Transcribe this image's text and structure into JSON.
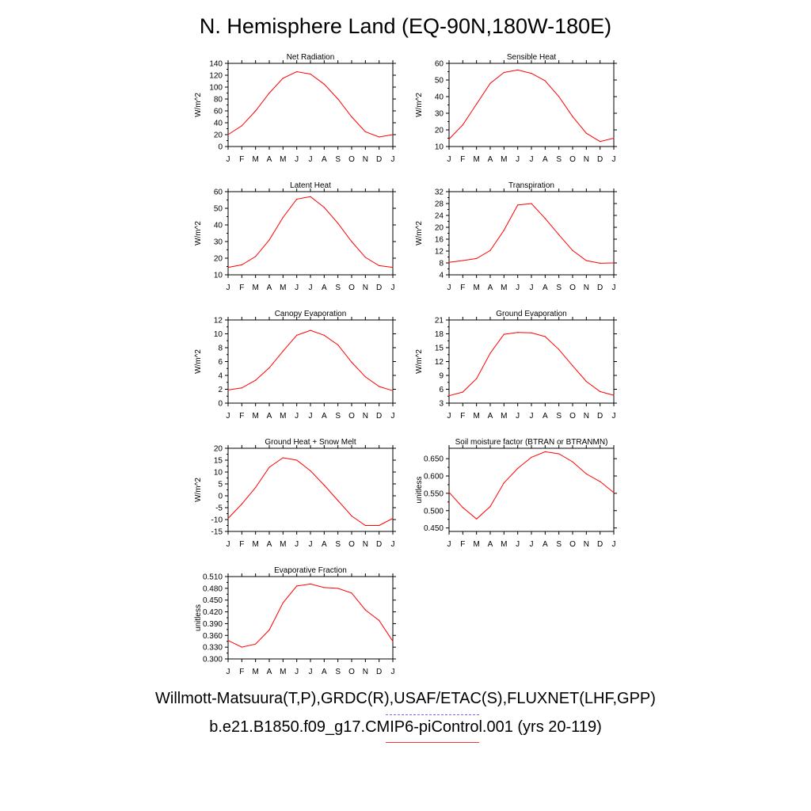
{
  "title": "N. Hemisphere Land (EQ-90N,180W-180E)",
  "legend": {
    "observations": "Willmott-Matsuura(T,P),GRDC(R),USAF/ETAC(S),FLUXNET(LHF,GPP)",
    "model": "b.e21.B1850.f09_g17.CMIP6-piControl.001 (yrs 20-119)",
    "observations_color": "#6a6aff",
    "model_color": "#ff0000"
  },
  "month_labels": [
    "J",
    "F",
    "M",
    "A",
    "M",
    "J",
    "J",
    "A",
    "S",
    "O",
    "N",
    "D",
    "J"
  ],
  "chart_data": [
    {
      "type": "line",
      "title": "Net Radiation",
      "ylabel": "W/m^2",
      "ylim": [
        0,
        140
      ],
      "yticks": [
        "0",
        "20",
        "40",
        "60",
        "80",
        "100",
        "120",
        "140"
      ],
      "series": [
        {
          "values": [
            20,
            35,
            60,
            90,
            115,
            126,
            122,
            105,
            80,
            50,
            25,
            16,
            20
          ]
        }
      ]
    },
    {
      "type": "line",
      "title": "Sensible Heat",
      "ylabel": "W/m^2",
      "ylim": [
        10,
        60
      ],
      "yticks": [
        "10",
        "20",
        "30",
        "40",
        "50",
        "60"
      ],
      "series": [
        {
          "values": [
            14.5,
            23,
            35.5,
            48,
            54.5,
            56,
            54,
            49.5,
            40,
            28,
            18,
            13,
            15
          ]
        }
      ]
    },
    {
      "type": "line",
      "title": "Latent Heat",
      "ylabel": "W/m^2",
      "ylim": [
        10,
        60
      ],
      "yticks": [
        "10",
        "20",
        "30",
        "40",
        "50",
        "60"
      ],
      "series": [
        {
          "values": [
            14.5,
            16,
            21,
            31,
            44.5,
            55.5,
            57,
            50.5,
            41,
            30,
            20.5,
            15.5,
            14.5
          ]
        }
      ]
    },
    {
      "type": "line",
      "title": "Transpiration",
      "ylabel": "W/m^2",
      "ylim": [
        4,
        32
      ],
      "yticks": [
        "4",
        "8",
        "12",
        "16",
        "20",
        "24",
        "28",
        "32"
      ],
      "series": [
        {
          "values": [
            8.2,
            8.8,
            9.5,
            12.2,
            19,
            27.5,
            28,
            23,
            17.5,
            12.2,
            8.8,
            7.9,
            8
          ]
        }
      ]
    },
    {
      "type": "line",
      "title": "Canopy Evaporation",
      "ylabel": "W/m^2",
      "ylim": [
        0,
        12
      ],
      "yticks": [
        "0",
        "2",
        "4",
        "6",
        "8",
        "10",
        "12"
      ],
      "series": [
        {
          "values": [
            1.9,
            2.2,
            3.3,
            5.1,
            7.5,
            9.8,
            10.5,
            9.8,
            8.4,
            5.9,
            3.8,
            2.4,
            1.8
          ]
        }
      ]
    },
    {
      "type": "line",
      "title": "Ground Evaporation",
      "ylabel": "W/m^2",
      "ylim": [
        3,
        21
      ],
      "yticks": [
        "3",
        "6",
        "9",
        "12",
        "15",
        "18",
        "21"
      ],
      "series": [
        {
          "values": [
            4.6,
            5.4,
            8.3,
            13.8,
            17.9,
            18.3,
            18.2,
            17.4,
            14.6,
            11.1,
            7.7,
            5.5,
            4.7
          ]
        }
      ]
    },
    {
      "type": "line",
      "title": "Ground Heat + Snow Melt",
      "ylabel": "W/m^2",
      "ylim": [
        -15,
        20
      ],
      "yticks": [
        "-15",
        "-10",
        "-5",
        "0",
        "5",
        "10",
        "15",
        "20"
      ],
      "series": [
        {
          "values": [
            -9.5,
            -3.5,
            3.5,
            12,
            16,
            15,
            10.5,
            4.5,
            -2,
            -8.5,
            -12.5,
            -12.5,
            -9.5
          ]
        }
      ]
    },
    {
      "type": "line",
      "title": "Soil moisture factor (BTRAN or BTRANMN)",
      "ylabel": "unitless",
      "ylim": [
        0.44,
        0.68
      ],
      "yticks": [
        "0.450",
        "0.500",
        "0.550",
        "0.600",
        "0.650"
      ],
      "series": [
        {
          "values": [
            0.553,
            0.509,
            0.476,
            0.512,
            0.58,
            0.622,
            0.654,
            0.67,
            0.664,
            0.641,
            0.606,
            0.584,
            0.552
          ]
        }
      ]
    },
    {
      "type": "line",
      "title": "Evaporative Fraction",
      "ylabel": "unitless",
      "ylim": [
        0.3,
        0.51
      ],
      "yticks": [
        "0.300",
        "0.330",
        "0.360",
        "0.390",
        "0.420",
        "0.450",
        "0.480",
        "0.510"
      ],
      "series": [
        {
          "values": [
            0.347,
            0.33,
            0.338,
            0.374,
            0.443,
            0.486,
            0.491,
            0.482,
            0.48,
            0.468,
            0.425,
            0.398,
            0.345
          ]
        }
      ]
    }
  ]
}
